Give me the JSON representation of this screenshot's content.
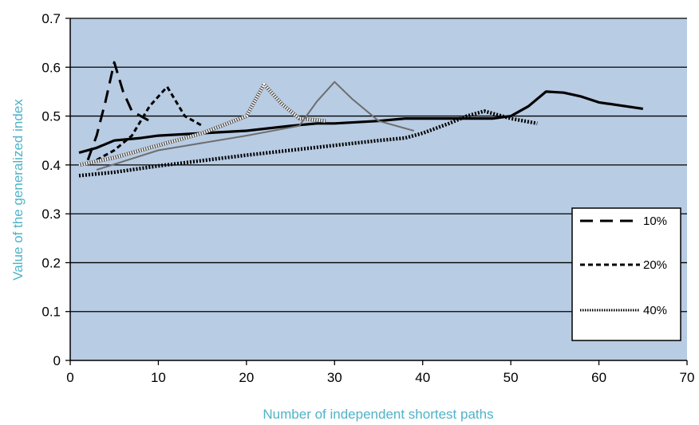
{
  "chart_data": {
    "type": "line",
    "title": "",
    "xlabel": "Number  of independent shortest paths",
    "ylabel": "Value of the generalized index",
    "xlim": [
      0,
      70
    ],
    "ylim": [
      0,
      0.7
    ],
    "x_ticks": [
      "0",
      "10",
      "20",
      "30",
      "40",
      "50",
      "60",
      "70"
    ],
    "y_ticks": [
      "0",
      "0.1",
      "0.2",
      "0.3",
      "0.4",
      "0.5",
      "0.6",
      "0.7"
    ],
    "grid": "horizontal",
    "legend_position": "right",
    "colors": {
      "plot_background": "#b8cce4",
      "axis_title": "#4fb3c8",
      "line": "#000000"
    },
    "series": [
      {
        "name": "",
        "style": "solid",
        "x": [
          1,
          3,
          5,
          8,
          10,
          15,
          20,
          25,
          28,
          30,
          35,
          38,
          40,
          45,
          48,
          50,
          52,
          54,
          56,
          58,
          60,
          65
        ],
        "y": [
          0.425,
          0.435,
          0.45,
          0.455,
          0.46,
          0.465,
          0.47,
          0.48,
          0.485,
          0.485,
          0.49,
          0.495,
          0.495,
          0.495,
          0.495,
          0.5,
          0.52,
          0.55,
          0.548,
          0.54,
          0.528,
          0.515
        ]
      },
      {
        "name": "",
        "style": "dotted-thick",
        "x": [
          1,
          5,
          10,
          20,
          30,
          35,
          38,
          40,
          43,
          45,
          47,
          48,
          50,
          53
        ],
        "y": [
          0.378,
          0.385,
          0.398,
          0.42,
          0.44,
          0.45,
          0.455,
          0.465,
          0.485,
          0.5,
          0.51,
          0.505,
          0.495,
          0.485
        ]
      },
      {
        "name": "10%",
        "style": "long-dash",
        "x": [
          2,
          3,
          4,
          5,
          6,
          7,
          9
        ],
        "y": [
          0.41,
          0.46,
          0.53,
          0.61,
          0.55,
          0.51,
          0.49
        ]
      },
      {
        "name": "20%",
        "style": "short-dash",
        "x": [
          3,
          5,
          7,
          9,
          11,
          13,
          15
        ],
        "y": [
          0.41,
          0.43,
          0.46,
          0.52,
          0.56,
          0.5,
          0.48
        ]
      },
      {
        "name": "40%",
        "style": "dotted",
        "x": [
          1,
          5,
          10,
          15,
          20,
          22,
          24,
          26,
          29
        ],
        "y": [
          0.4,
          0.415,
          0.44,
          0.465,
          0.5,
          0.565,
          0.525,
          0.495,
          0.49
        ]
      },
      {
        "name": "",
        "style": "solid-gray",
        "x": [
          3,
          10,
          20,
          26,
          28,
          30,
          32,
          35,
          39
        ],
        "y": [
          0.39,
          0.43,
          0.46,
          0.48,
          0.53,
          0.57,
          0.535,
          0.49,
          0.47
        ]
      }
    ],
    "legend": [
      {
        "label": "10%",
        "style": "long-dash"
      },
      {
        "label": "20%",
        "style": "short-dash"
      },
      {
        "label": "40%",
        "style": "dotted"
      }
    ]
  }
}
